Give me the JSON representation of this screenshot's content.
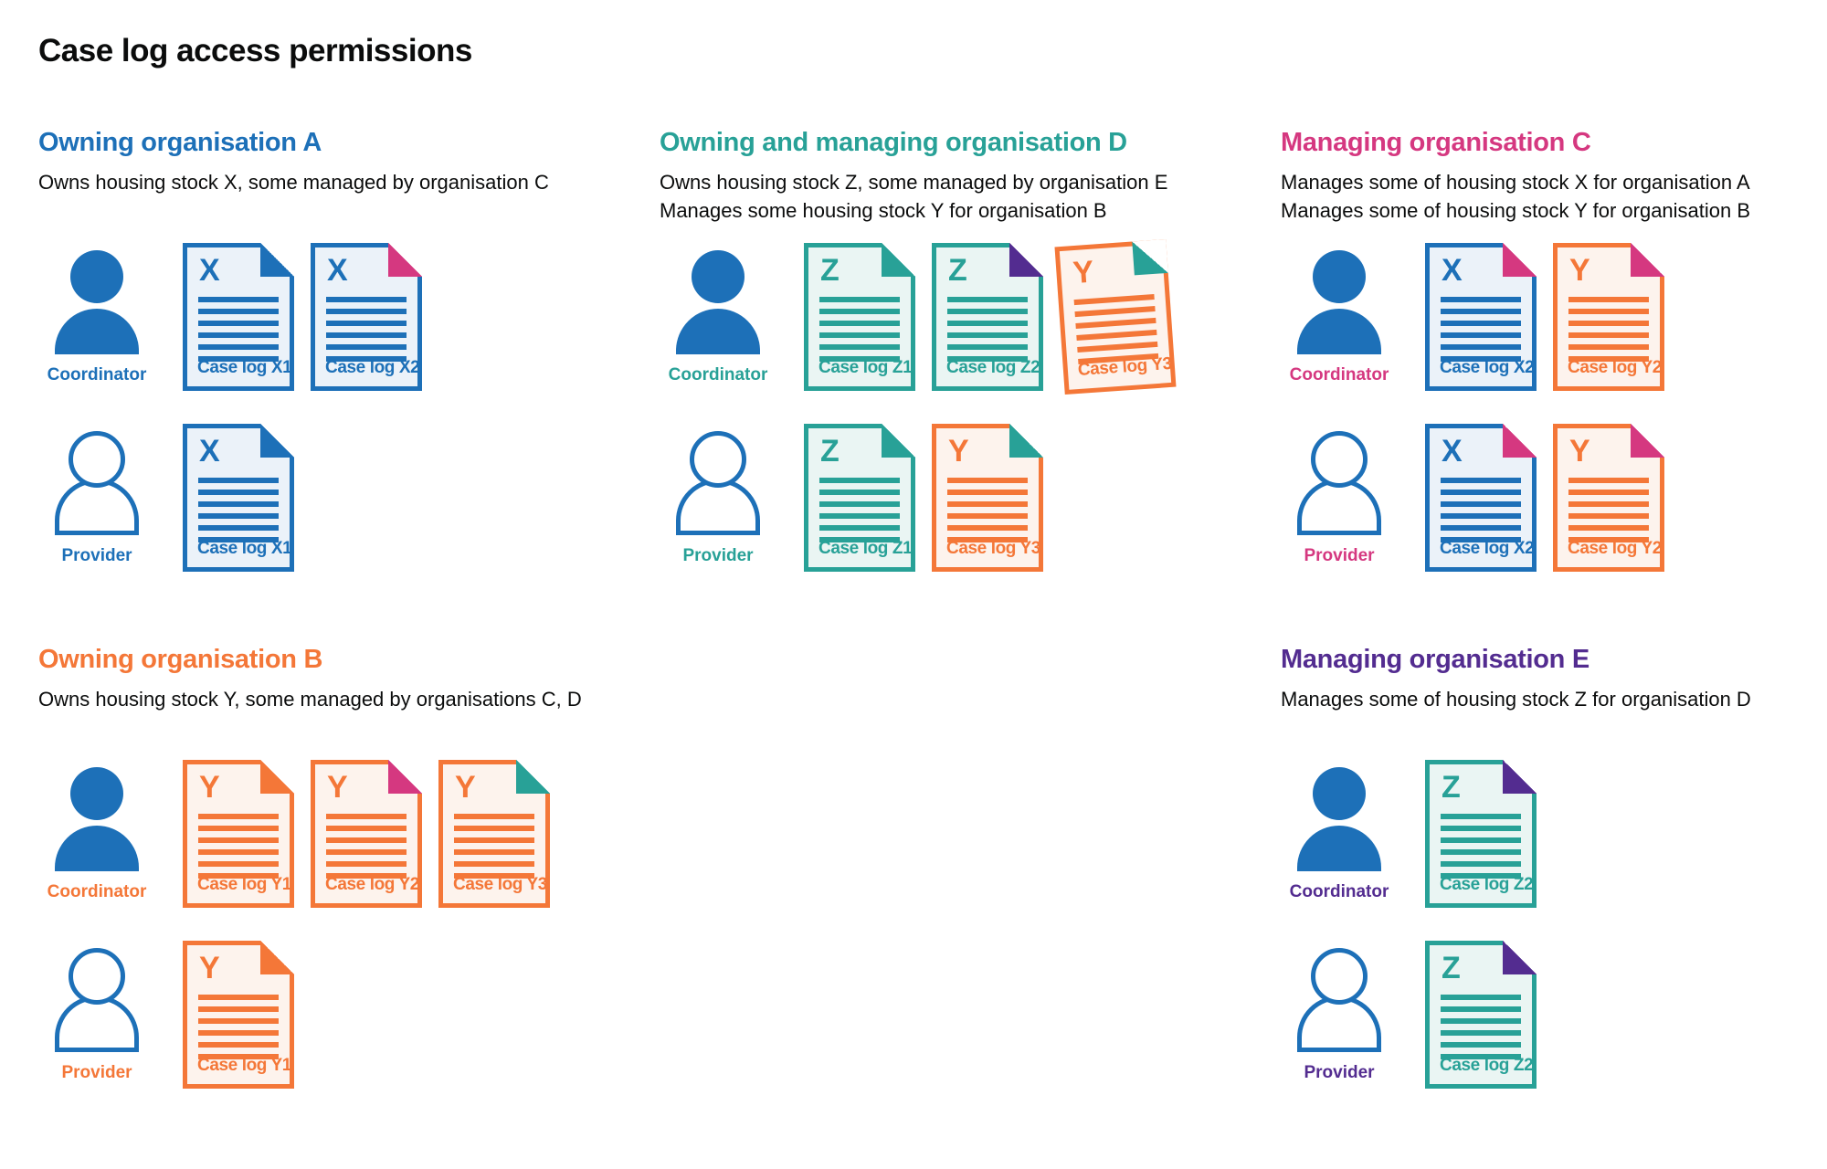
{
  "title": "Case log access permissions",
  "colors": {
    "blue": "#1d70b8",
    "teal": "#28a197",
    "pink": "#d53880",
    "orange": "#f47738",
    "purple": "#532c90",
    "text": "#0b0c0c",
    "doc_bg_blue": "#ebf2f9",
    "doc_bg_teal": "#eaf5f3",
    "doc_bg_orange": "#fdf3ed"
  },
  "roles": {
    "coordinator": "Coordinator",
    "provider": "Provider"
  },
  "sections": [
    {
      "heading": "Owning organisation A",
      "color": "blue",
      "description": [
        "Owns housing stock X, some managed by organisation C"
      ],
      "rows": [
        {
          "role": "Coordinator",
          "person": "filled",
          "docs": [
            {
              "letter": "X",
              "label": "Case log X1",
              "doc_color": "blue",
              "fold_color": "blue"
            },
            {
              "letter": "X",
              "label": "Case log X2",
              "doc_color": "blue",
              "fold_color": "pink"
            }
          ]
        },
        {
          "role": "Provider",
          "person": "outline",
          "docs": [
            {
              "letter": "X",
              "label": "Case log X1",
              "doc_color": "blue",
              "fold_color": "blue"
            }
          ]
        }
      ]
    },
    {
      "heading": "Owning and managing organisation D",
      "color": "teal",
      "description": [
        "Owns housing stock Z, some managed by organisation E",
        "Manages some housing stock Y for organisation B"
      ],
      "rows": [
        {
          "role": "Coordinator",
          "person": "filled",
          "docs": [
            {
              "letter": "Z",
              "label": "Case log Z1",
              "doc_color": "teal",
              "fold_color": "teal"
            },
            {
              "letter": "Z",
              "label": "Case log Z2",
              "doc_color": "teal",
              "fold_color": "purple"
            },
            {
              "letter": "Y",
              "label": "Case log Y3",
              "doc_color": "orange",
              "fold_color": "teal",
              "tilted": true
            }
          ]
        },
        {
          "role": "Provider",
          "person": "outline",
          "docs": [
            {
              "letter": "Z",
              "label": "Case log Z1",
              "doc_color": "teal",
              "fold_color": "teal"
            },
            {
              "letter": "Y",
              "label": "Case log Y3",
              "doc_color": "orange",
              "fold_color": "teal"
            }
          ]
        }
      ]
    },
    {
      "heading": "Managing organisation C",
      "color": "pink",
      "description": [
        "Manages some of housing stock X for organisation A",
        "Manages some of housing stock Y for organisation B"
      ],
      "rows": [
        {
          "role": "Coordinator",
          "person": "filled",
          "docs": [
            {
              "letter": "X",
              "label": "Case log X2",
              "doc_color": "blue",
              "fold_color": "pink"
            },
            {
              "letter": "Y",
              "label": "Case log Y2",
              "doc_color": "orange",
              "fold_color": "pink"
            }
          ]
        },
        {
          "role": "Provider",
          "person": "outline",
          "docs": [
            {
              "letter": "X",
              "label": "Case log X2",
              "doc_color": "blue",
              "fold_color": "pink"
            },
            {
              "letter": "Y",
              "label": "Case log Y2",
              "doc_color": "orange",
              "fold_color": "pink"
            }
          ]
        }
      ]
    },
    {
      "heading": "Owning organisation B",
      "color": "orange",
      "description": [
        "Owns housing stock Y, some managed by organisations C, D"
      ],
      "rows": [
        {
          "role": "Coordinator",
          "person": "filled",
          "docs": [
            {
              "letter": "Y",
              "label": "Case log Y1",
              "doc_color": "orange",
              "fold_color": "orange"
            },
            {
              "letter": "Y",
              "label": "Case log Y2",
              "doc_color": "orange",
              "fold_color": "pink"
            },
            {
              "letter": "Y",
              "label": "Case log Y3",
              "doc_color": "orange",
              "fold_color": "teal"
            }
          ]
        },
        {
          "role": "Provider",
          "person": "outline",
          "docs": [
            {
              "letter": "Y",
              "label": "Case log Y1",
              "doc_color": "orange",
              "fold_color": "orange"
            }
          ]
        }
      ]
    },
    {
      "heading": "Managing organisation E",
      "color": "purple",
      "description": [
        "Manages some of housing stock Z for organisation D"
      ],
      "rows": [
        {
          "role": "Coordinator",
          "person": "filled",
          "docs": [
            {
              "letter": "Z",
              "label": "Case log Z2",
              "doc_color": "teal",
              "fold_color": "purple"
            }
          ]
        },
        {
          "role": "Provider",
          "person": "outline",
          "docs": [
            {
              "letter": "Z",
              "label": "Case log Z2",
              "doc_color": "teal",
              "fold_color": "purple"
            }
          ]
        }
      ]
    }
  ]
}
